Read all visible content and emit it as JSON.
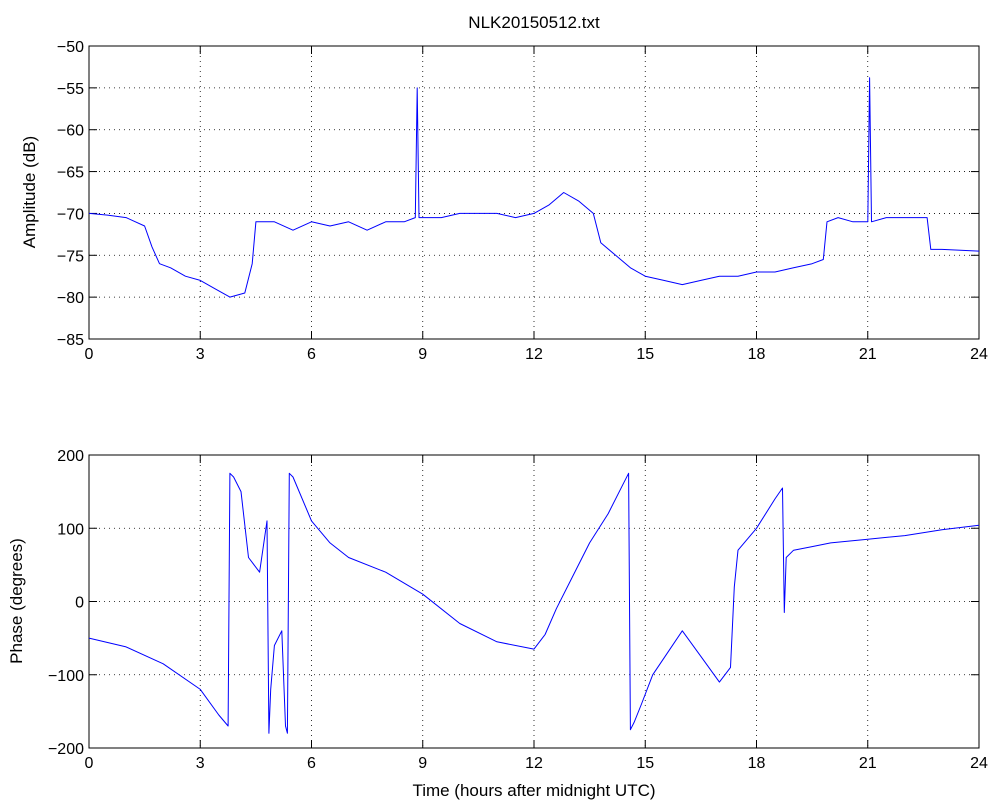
{
  "chart_data": [
    {
      "type": "line",
      "title": "NLK20150512.txt",
      "xlabel": "",
      "ylabel": "Amplitude (dB)",
      "xlim": [
        0,
        24
      ],
      "ylim": [
        -85,
        -50
      ],
      "xticks": [
        "0",
        "3",
        "6",
        "9",
        "12",
        "15",
        "18",
        "21",
        "24"
      ],
      "yticks": [
        "−50",
        "−55",
        "−60",
        "−65",
        "−70",
        "−75",
        "−80",
        "−85"
      ],
      "grid": true,
      "color": "#0000ff",
      "series": [
        {
          "x": [
            0,
            0.5,
            1.0,
            1.5,
            1.7,
            1.9,
            2.2,
            2.6,
            3.0,
            3.4,
            3.8,
            4.2,
            4.4,
            4.5,
            5.0,
            5.5,
            6.0,
            6.5,
            7.0,
            7.5,
            8.0,
            8.5,
            8.8,
            8.85,
            8.9,
            9.5,
            10.0,
            10.5,
            11.0,
            11.5,
            12.0,
            12.4,
            12.8,
            13.2,
            13.6,
            13.8,
            14.2,
            14.6,
            15.0,
            15.5,
            16.0,
            16.5,
            17.0,
            17.5,
            18.0,
            18.5,
            19.0,
            19.5,
            19.8,
            19.9,
            20.2,
            20.6,
            21.0,
            21.05,
            21.1,
            21.5,
            22.0,
            22.6,
            22.7,
            23.0,
            23.5,
            24.0
          ],
          "y": [
            -70,
            -70.2,
            -70.5,
            -71.5,
            -74,
            -76,
            -76.5,
            -77.5,
            -78,
            -79,
            -80,
            -79.5,
            -76,
            -71,
            -71,
            -72,
            -71,
            -71.5,
            -71,
            -72,
            -71,
            -71,
            -70.5,
            -55,
            -70.5,
            -70.5,
            -70,
            -70,
            -70,
            -70.5,
            -70,
            -69,
            -67.5,
            -68.5,
            -70,
            -73.5,
            -75,
            -76.5,
            -77.5,
            -78,
            -78.5,
            -78,
            -77.5,
            -77.5,
            -77,
            -77,
            -76.5,
            -76,
            -75.5,
            -71,
            -70.5,
            -71,
            -71,
            -53.8,
            -71,
            -70.5,
            -70.5,
            -70.5,
            -74.3,
            -74.3,
            -74.4,
            -74.5
          ]
        }
      ]
    },
    {
      "type": "line",
      "title": "",
      "xlabel": "Time (hours after midnight UTC)",
      "ylabel": "Phase (degrees)",
      "xlim": [
        0,
        24
      ],
      "ylim": [
        -200,
        200
      ],
      "xticks": [
        "0",
        "3",
        "6",
        "9",
        "12",
        "15",
        "18",
        "21",
        "24"
      ],
      "yticks": [
        "200",
        "100",
        "0",
        "−100",
        "−200"
      ],
      "grid": true,
      "color": "#0000ff",
      "series": [
        {
          "x": [
            0,
            1.0,
            2.0,
            3.0,
            3.5,
            3.75,
            3.8,
            3.9,
            4.1,
            4.3,
            4.6,
            4.8,
            4.85,
            4.9,
            5.0,
            5.2,
            5.3,
            5.35,
            5.4,
            5.5,
            6.0,
            6.5,
            7.0,
            8.0,
            9.0,
            10.0,
            11.0,
            12.0,
            12.3,
            12.6,
            13.0,
            13.5,
            14.0,
            14.4,
            14.55,
            14.6,
            14.7,
            14.9,
            15.2,
            15.6,
            16.0,
            16.5,
            17.0,
            17.3,
            17.4,
            17.5,
            18.0,
            18.5,
            18.7,
            18.75,
            18.8,
            19.0,
            19.5,
            20.0,
            21.0,
            22.0,
            23.0,
            24.0
          ],
          "y": [
            -50,
            -62,
            -85,
            -120,
            -155,
            -170,
            175,
            170,
            150,
            60,
            40,
            110,
            -180,
            -120,
            -60,
            -40,
            -170,
            -180,
            175,
            170,
            110,
            80,
            60,
            40,
            10,
            -30,
            -55,
            -65,
            -45,
            -10,
            30,
            80,
            120,
            160,
            175,
            -175,
            -165,
            -140,
            -100,
            -70,
            -40,
            -75,
            -110,
            -90,
            20,
            70,
            100,
            140,
            155,
            -15,
            60,
            70,
            75,
            80,
            85,
            90,
            98,
            104
          ]
        }
      ]
    }
  ]
}
